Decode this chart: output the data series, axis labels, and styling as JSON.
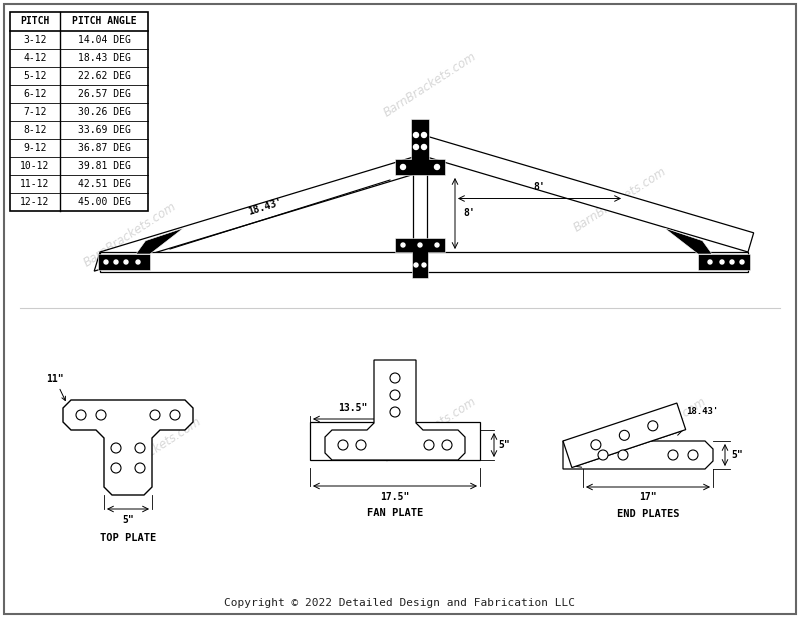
{
  "bg_color": "#ffffff",
  "watermark_color": "#b0b0b0",
  "line_color": "#000000",
  "bracket_color": "#000000",
  "table": {
    "pitches": [
      "3-12",
      "4-12",
      "5-12",
      "6-12",
      "7-12",
      "8-12",
      "9-12",
      "10-12",
      "11-12",
      "12-12"
    ],
    "angles": [
      "14.04 DEG",
      "18.43 DEG",
      "22.62 DEG",
      "26.57 DEG",
      "30.26 DEG",
      "33.69 DEG",
      "36.87 DEG",
      "39.81 DEG",
      "42.51 DEG",
      "45.00 DEG"
    ],
    "col1_header": "PITCH",
    "col2_header": "PITCH ANGLE"
  },
  "copyright": "Copyright © 2022 Detailed Design and Fabrication LLC"
}
